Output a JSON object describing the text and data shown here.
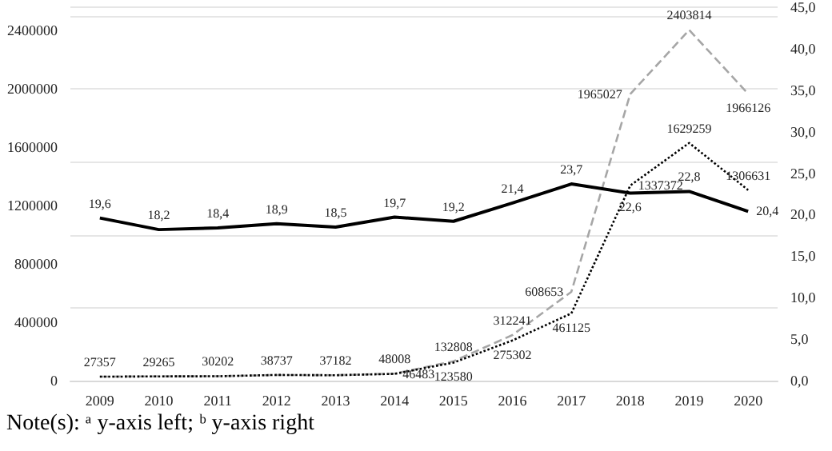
{
  "chart_data": {
    "type": "line",
    "categories": [
      "2009",
      "2010",
      "2011",
      "2012",
      "2013",
      "2014",
      "2015",
      "2016",
      "2017",
      "2018",
      "2019",
      "2020"
    ],
    "series": [
      {
        "color": "#a6a6a6",
        "line_style": "dashed",
        "axis": "y",
        "values": [
          27357,
          29265,
          30202,
          38737,
          37182,
          48008,
          132808,
          312241,
          608653,
          1965027,
          2403814,
          1966126
        ],
        "value_labels": [
          "27357",
          "29265",
          "30202",
          "38737",
          "37182",
          "48008",
          "132808",
          "312241",
          "608653",
          "1965027",
          "2403814",
          "1966126"
        ]
      },
      {
        "color": "#000000",
        "line_style": "dotted",
        "axis": "y",
        "values": [
          27000,
          29000,
          30000,
          39000,
          37000,
          46483,
          123580,
          275302,
          461125,
          1337372,
          1629259,
          1306631
        ],
        "value_labels": [
          null,
          null,
          null,
          null,
          null,
          "46483",
          "123580",
          "275302",
          "461125",
          "1337372",
          "1629259",
          "1306631"
        ]
      },
      {
        "color": "#000000",
        "line_style": "solid",
        "axis": "y2",
        "values": [
          19.6,
          18.2,
          18.4,
          18.9,
          18.5,
          19.7,
          19.2,
          21.4,
          23.7,
          22.6,
          22.8,
          20.4
        ],
        "value_labels": [
          "19,6",
          "18,2",
          "18,4",
          "18,9",
          "18,5",
          "19,7",
          "19,2",
          "21,4",
          "23,7",
          "22,6",
          "22,8",
          "20,4"
        ]
      }
    ],
    "ylim": [
      0,
      2560000
    ],
    "yticks": [
      0,
      400000,
      800000,
      1200000,
      1600000,
      2000000,
      2400000
    ],
    "y2lim": [
      0,
      45
    ],
    "y2ticks": [
      {
        "value": 0,
        "label": "0,0"
      },
      {
        "value": 5,
        "label": "5,0"
      },
      {
        "value": 10,
        "label": "10,0"
      },
      {
        "value": 15,
        "label": "15,0"
      },
      {
        "value": 20,
        "label": "20,0"
      },
      {
        "value": 25,
        "label": "25,0"
      },
      {
        "value": 30,
        "label": "30,0"
      },
      {
        "value": 35,
        "label": "35,0"
      },
      {
        "value": 40,
        "label": "40,0"
      },
      {
        "value": 45,
        "label": "45,0"
      }
    ],
    "grid": "y",
    "marker": "none",
    "annotations": [
      "Note(s): ᵃ y-axis left; ᵇ y-axis right"
    ]
  }
}
